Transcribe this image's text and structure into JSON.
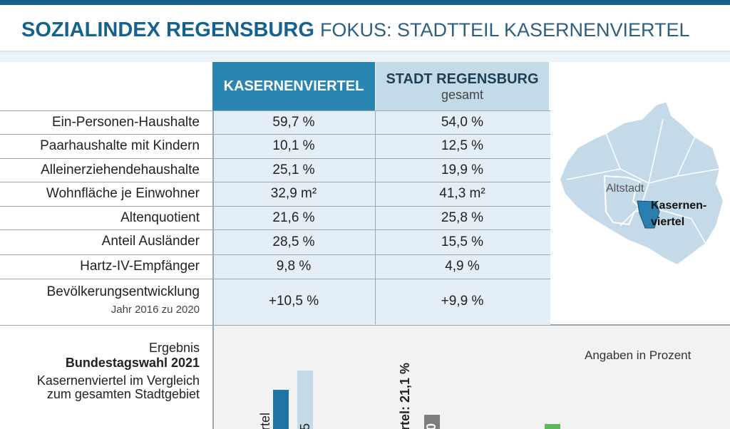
{
  "header": {
    "title": "SOZIALINDEX REGENSBURG",
    "subtitle": "FOKUS: STADTTEIL KASERNENVIERTEL"
  },
  "table": {
    "columns": [
      {
        "title": "KASERNENVIERTEL"
      },
      {
        "title": "STADT REGENSBURG",
        "sub": "gesamt"
      }
    ],
    "rows": [
      {
        "label": "Ein-Personen-Haushalte",
        "values": [
          "59,7 %",
          "54,0 %"
        ]
      },
      {
        "label": "Paarhaushalte mit Kindern",
        "values": [
          "10,1 %",
          "12,5 %"
        ]
      },
      {
        "label": "Alleinerziehendehaushalte",
        "values": [
          "25,1 %",
          "19,9 %"
        ]
      },
      {
        "label": "Wohnfläche je Einwohner",
        "values": [
          "32,9 m²",
          "41,3 m²"
        ]
      },
      {
        "label": "Altenquotient",
        "values": [
          "21,6 %",
          "25,8 %"
        ]
      },
      {
        "label": "Anteil Ausländer",
        "values": [
          "28,5 %",
          "15,5 %"
        ]
      },
      {
        "label": "Hartz-IV-Empfänger",
        "values": [
          "9,8 %",
          "4,9 %"
        ]
      },
      {
        "label": "Bevölkerungsentwicklung",
        "sub": "Jahr 2016 zu 2020",
        "values": [
          "+10,5 %",
          "+9,9 %"
        ]
      }
    ]
  },
  "map": {
    "labels": [
      "Altstadt",
      "Kasernen-",
      "viertel"
    ]
  },
  "election": {
    "lines": [
      "Ergebnis",
      "Bundestagswahl 2021",
      "Kasernenviertel im Vergleich",
      "zum gesamten Stadtgebiet"
    ],
    "note": "Angaben in Prozent",
    "bar_labels": [
      "rtel",
      "5",
      "rtel:  21,1 %",
      "0"
    ]
  }
}
